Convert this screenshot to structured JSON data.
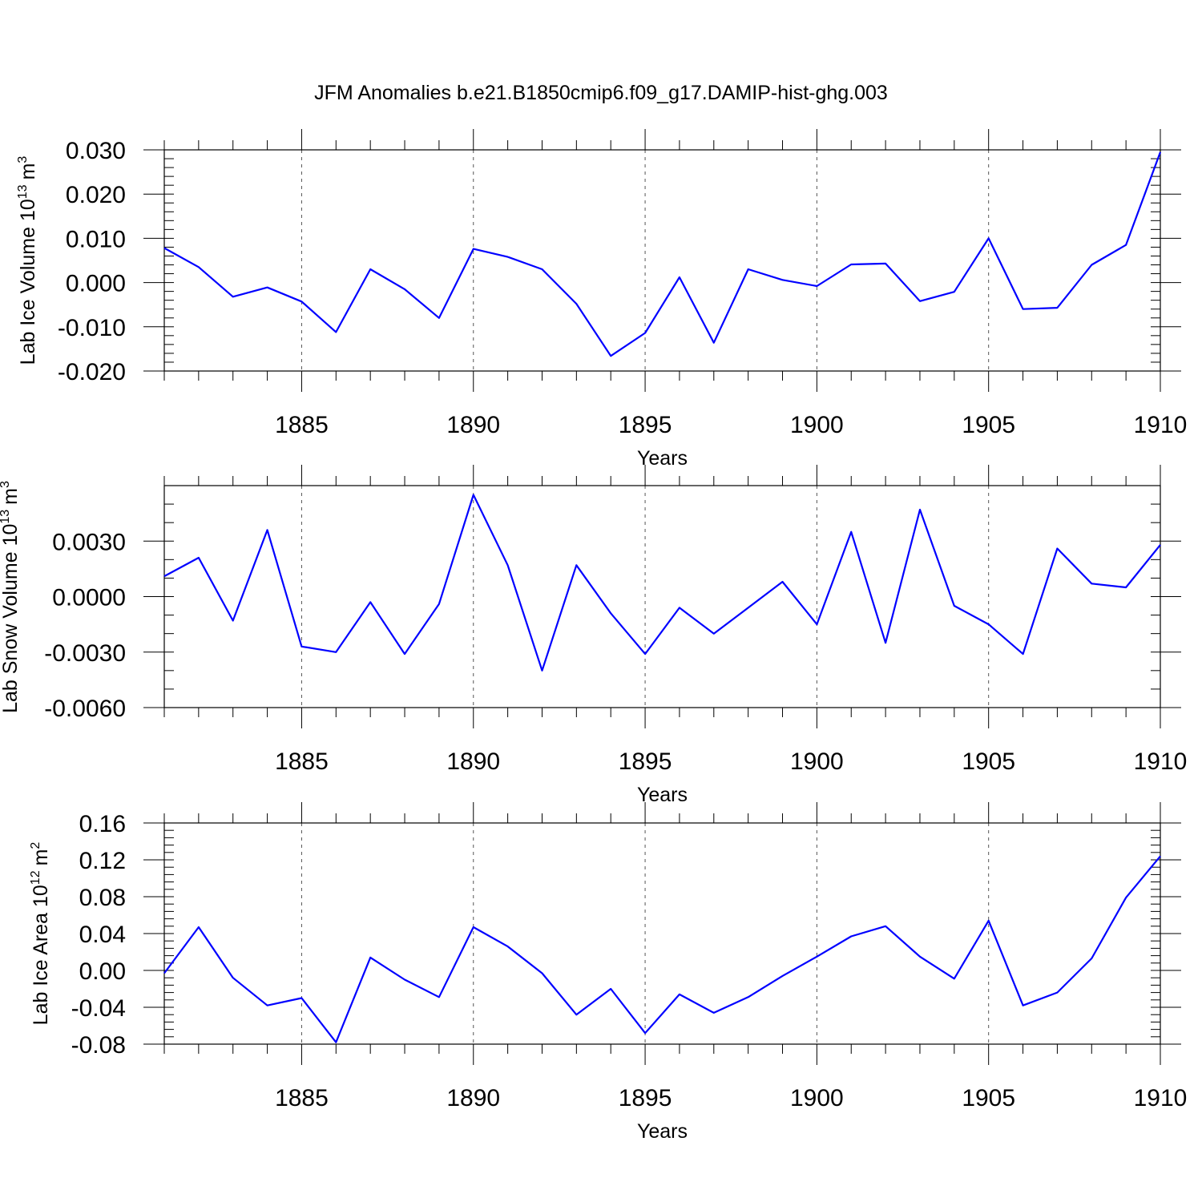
{
  "figure": {
    "title": "JFM Anomalies b.e21.B1850cmip6.f09_g17.DAMIP-hist-ghg.003",
    "series_color": "#0000ff"
  },
  "chart_data": [
    {
      "type": "line",
      "ylabel": "Lab Ice Volume 10",
      "ylabel_sup": "13",
      "ylabel_unit": "m",
      "ylabel_unit_sup": "3",
      "xlabel": "Years",
      "xlim": [
        1881,
        1910
      ],
      "ylim": [
        -0.02,
        0.03
      ],
      "x_ticks": [
        1885,
        1890,
        1895,
        1900,
        1905,
        1910
      ],
      "x_tick_labels": [
        "1885",
        "1890",
        "1895",
        "1900",
        "1905",
        "1910"
      ],
      "y_ticks": [
        -0.02,
        -0.01,
        0.0,
        0.01,
        0.02,
        0.03
      ],
      "y_tick_labels": [
        "-0.020",
        "-0.010",
        "0.000",
        "0.010",
        "0.020",
        "0.030"
      ],
      "y_minor_step": 0.002,
      "grid": "dashed vertical at major x ticks",
      "x": [
        1881,
        1882,
        1883,
        1884,
        1885,
        1886,
        1887,
        1888,
        1889,
        1890,
        1891,
        1892,
        1893,
        1894,
        1895,
        1896,
        1897,
        1898,
        1899,
        1900,
        1901,
        1902,
        1903,
        1904,
        1905,
        1906,
        1907,
        1908,
        1909,
        1910
      ],
      "values": [
        0.0078,
        0.0035,
        -0.0032,
        -0.0011,
        -0.0043,
        -0.0112,
        0.003,
        -0.0015,
        -0.008,
        0.0076,
        0.0058,
        0.003,
        -0.0048,
        -0.0166,
        -0.0114,
        0.0012,
        -0.0136,
        0.003,
        0.0006,
        -0.0008,
        0.0041,
        0.0043,
        -0.0042,
        -0.0021,
        0.01,
        -0.006,
        -0.0057,
        0.004,
        0.0085,
        0.0295
      ]
    },
    {
      "type": "line",
      "ylabel": "Lab Snow Volume 10",
      "ylabel_sup": "13",
      "ylabel_unit": "m",
      "ylabel_unit_sup": "3",
      "xlabel": "Years",
      "xlim": [
        1881,
        1910
      ],
      "ylim": [
        -0.006,
        0.006
      ],
      "x_ticks": [
        1885,
        1890,
        1895,
        1900,
        1905,
        1910
      ],
      "x_tick_labels": [
        "1885",
        "1890",
        "1895",
        "1900",
        "1905",
        "1910"
      ],
      "y_ticks": [
        -0.006,
        -0.003,
        0.0,
        0.003
      ],
      "y_tick_labels": [
        "-0.0060",
        "-0.0030",
        "0.0000",
        "0.0030"
      ],
      "y_minor_step": 0.001,
      "grid": "dashed vertical at major x ticks",
      "x": [
        1881,
        1882,
        1883,
        1884,
        1885,
        1886,
        1887,
        1888,
        1889,
        1890,
        1891,
        1892,
        1893,
        1894,
        1895,
        1896,
        1897,
        1898,
        1899,
        1900,
        1901,
        1902,
        1903,
        1904,
        1905,
        1906,
        1907,
        1908,
        1909,
        1910
      ],
      "values": [
        0.0011,
        0.0021,
        -0.0013,
        0.0036,
        -0.0027,
        -0.003,
        -0.0003,
        -0.0031,
        -0.0004,
        0.0055,
        0.0017,
        -0.004,
        0.0017,
        -0.0009,
        -0.0031,
        -0.0006,
        -0.002,
        -0.0006,
        0.0008,
        -0.0015,
        0.0035,
        -0.0025,
        0.0047,
        -0.0005,
        -0.0015,
        -0.0031,
        0.0026,
        0.0007,
        0.0005,
        0.0028
      ]
    },
    {
      "type": "line",
      "ylabel": "Lab Ice Area 10",
      "ylabel_sup": "12",
      "ylabel_unit": "m",
      "ylabel_unit_sup": "2",
      "xlabel": "Years",
      "xlim": [
        1881,
        1910
      ],
      "ylim": [
        -0.08,
        0.16
      ],
      "x_ticks": [
        1885,
        1890,
        1895,
        1900,
        1905,
        1910
      ],
      "x_tick_labels": [
        "1885",
        "1890",
        "1895",
        "1900",
        "1905",
        "1910"
      ],
      "y_ticks": [
        -0.08,
        -0.04,
        0.0,
        0.04,
        0.08,
        0.12,
        0.16
      ],
      "y_tick_labels": [
        "-0.08",
        "-0.04",
        "0.00",
        "0.04",
        "0.08",
        "0.12",
        "0.16"
      ],
      "y_minor_step": 0.008,
      "grid": "dashed vertical at major x ticks",
      "x": [
        1881,
        1882,
        1883,
        1884,
        1885,
        1886,
        1887,
        1888,
        1889,
        1890,
        1891,
        1892,
        1893,
        1894,
        1895,
        1896,
        1897,
        1898,
        1899,
        1900,
        1901,
        1902,
        1903,
        1904,
        1905,
        1906,
        1907,
        1908,
        1909,
        1910
      ],
      "values": [
        -0.003,
        0.047,
        -0.008,
        -0.038,
        -0.03,
        -0.078,
        0.014,
        -0.01,
        -0.029,
        0.047,
        0.026,
        -0.003,
        -0.048,
        -0.02,
        -0.068,
        -0.026,
        -0.046,
        -0.029,
        -0.006,
        0.015,
        0.037,
        0.048,
        0.015,
        -0.009,
        0.054,
        -0.038,
        -0.024,
        0.013,
        0.079,
        0.124
      ]
    }
  ]
}
